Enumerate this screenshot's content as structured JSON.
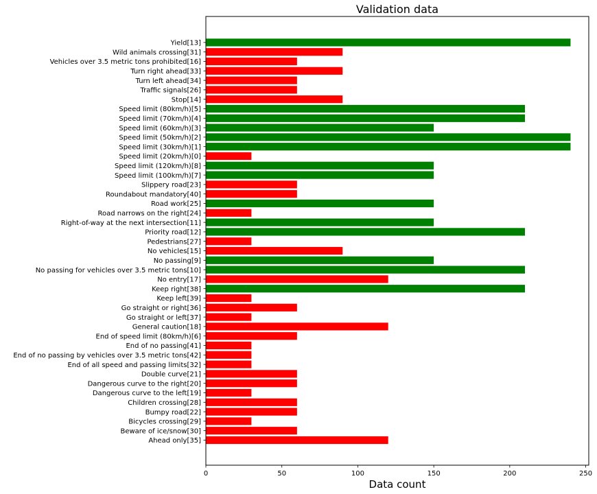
{
  "chart_data": {
    "type": "bar",
    "orientation": "horizontal",
    "title": "Validation data",
    "xlabel": "Data count",
    "ylabel": "",
    "xlim": [
      0,
      252
    ],
    "xticks": [
      0,
      50,
      100,
      150,
      200,
      250
    ],
    "grid": false,
    "colors": {
      "above_threshold": "#008000",
      "below_threshold": "#ff0000"
    },
    "categories": [
      "Ahead only[35]",
      "Beware of ice/snow[30]",
      "Bicycles crossing[29]",
      "Bumpy road[22]",
      "Children crossing[28]",
      "Dangerous curve to the left[19]",
      "Dangerous curve to the right[20]",
      "Double curve[21]",
      "End of all speed and passing limits[32]",
      "End of no passing by vehicles over 3.5 metric tons[42]",
      "End of no passing[41]",
      "End of speed limit (80km/h)[6]",
      "General caution[18]",
      "Go straight or left[37]",
      "Go straight or right[36]",
      "Keep left[39]",
      "Keep right[38]",
      "No entry[17]",
      "No passing for vehicles over 3.5 metric tons[10]",
      "No passing[9]",
      "No vehicles[15]",
      "Pedestrians[27]",
      "Priority road[12]",
      "Right-of-way at the next intersection[11]",
      "Road narrows on the right[24]",
      "Road work[25]",
      "Roundabout mandatory[40]",
      "Slippery road[23]",
      "Speed limit (100km/h)[7]",
      "Speed limit (120km/h)[8]",
      "Speed limit (20km/h)[0]",
      "Speed limit (30km/h)[1]",
      "Speed limit (50km/h)[2]",
      "Speed limit (60km/h)[3]",
      "Speed limit (70km/h)[4]",
      "Speed limit (80km/h)[5]",
      "Stop[14]",
      "Traffic signals[26]",
      "Turn left ahead[34]",
      "Turn right ahead[33]",
      "Vehicles over 3.5 metric tons prohibited[16]",
      "Wild animals crossing[31]",
      "Yield[13]"
    ],
    "values": [
      120,
      60,
      30,
      60,
      60,
      30,
      60,
      60,
      30,
      30,
      30,
      60,
      120,
      30,
      60,
      30,
      210,
      120,
      210,
      150,
      90,
      30,
      210,
      150,
      30,
      150,
      60,
      60,
      150,
      150,
      30,
      240,
      240,
      150,
      210,
      210,
      90,
      60,
      60,
      90,
      60,
      90,
      240
    ],
    "bar_colors": [
      "red",
      "red",
      "red",
      "red",
      "red",
      "red",
      "red",
      "red",
      "red",
      "red",
      "red",
      "red",
      "red",
      "red",
      "red",
      "red",
      "green",
      "red",
      "green",
      "green",
      "red",
      "red",
      "green",
      "green",
      "red",
      "green",
      "red",
      "red",
      "green",
      "green",
      "red",
      "green",
      "green",
      "green",
      "green",
      "green",
      "red",
      "red",
      "red",
      "red",
      "red",
      "red",
      "green"
    ]
  }
}
